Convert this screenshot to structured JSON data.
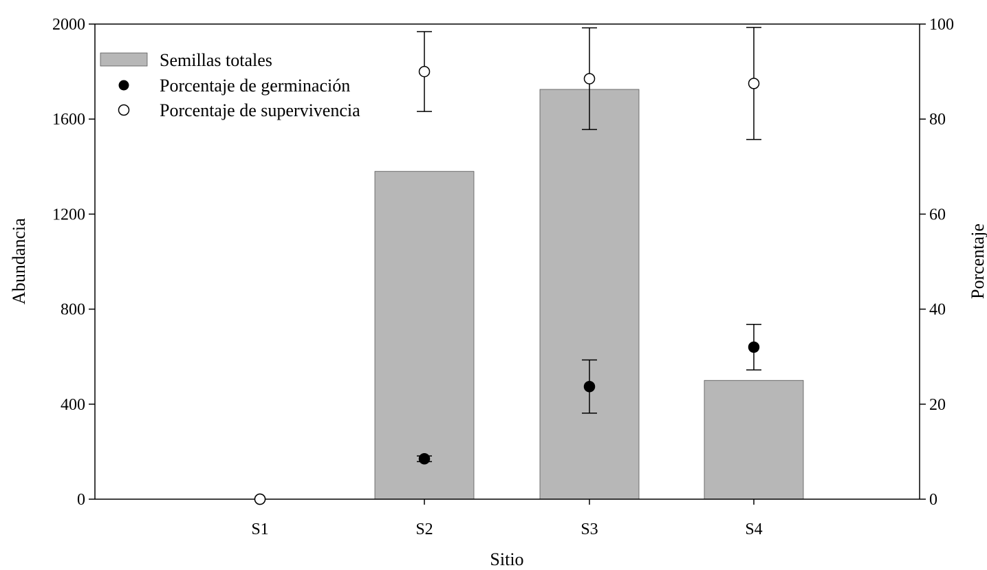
{
  "chart_data": {
    "type": "bar",
    "categories": [
      "S1",
      "S2",
      "S3",
      "S4"
    ],
    "xlabel": "Sitio",
    "ylabel": "Abundancia",
    "y2label": "Porcentaje",
    "ylim": [
      0,
      2000
    ],
    "y2lim": [
      0,
      100
    ],
    "yticks": [
      0,
      400,
      800,
      1200,
      1600,
      2000
    ],
    "y2ticks": [
      0,
      20,
      40,
      60,
      80,
      100
    ],
    "grid": false,
    "legend_position": "top-left",
    "bar_color": "#b7b7b7",
    "series": [
      {
        "name": "Semillas totales",
        "kind": "bar",
        "axis": "left",
        "values": [
          0,
          1380,
          1725,
          500
        ]
      },
      {
        "name": "Porcentaje de germinación",
        "kind": "scatter",
        "marker": "filled-circle",
        "axis": "right",
        "values": [
          0,
          8.5,
          23.7,
          32.0
        ],
        "errors": [
          0,
          0.6,
          5.6,
          4.8
        ]
      },
      {
        "name": "Porcentaje de supervivencia",
        "kind": "scatter",
        "marker": "open-circle",
        "axis": "right",
        "values": [
          0,
          90.0,
          88.5,
          87.5
        ],
        "errors": [
          0,
          8.4,
          10.7,
          11.8
        ]
      }
    ]
  }
}
